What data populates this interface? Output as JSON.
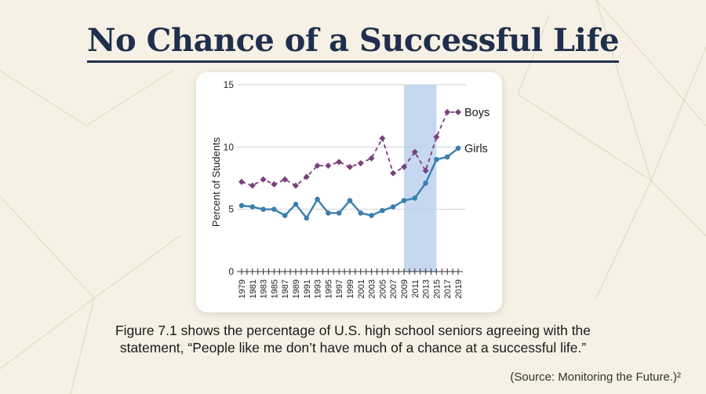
{
  "page": {
    "title": "No Chance of a Successful Life",
    "caption_line1": "Figure 7.1 shows the percentage of U.S. high school seniors agreeing with the",
    "caption_line2": "statement, “People like me don’t have much of a chance at a successful life.”",
    "source": "(Source: Monitoring the Future.)²"
  },
  "chart_data": {
    "type": "line",
    "ylabel": "Percent of Students",
    "ylim": [
      0,
      15
    ],
    "yticks": [
      0,
      5,
      10,
      15
    ],
    "x": [
      1979,
      1980,
      1981,
      1982,
      1983,
      1984,
      1985,
      1986,
      1987,
      1988,
      1989,
      1990,
      1991,
      1992,
      1993,
      1994,
      1995,
      1996,
      1997,
      1998,
      1999,
      2000,
      2001,
      2002,
      2003,
      2004,
      2005,
      2006,
      2007,
      2008,
      2009,
      2010,
      2011,
      2012,
      2013,
      2014,
      2015,
      2016,
      2017,
      2018,
      2019
    ],
    "xticks": [
      "1979",
      "1981",
      "1983",
      "1985",
      "1987",
      "1989",
      "1991",
      "1993",
      "1995",
      "1997",
      "1999",
      "2001",
      "2003",
      "2005",
      "2007",
      "2009",
      "2011",
      "2013",
      "2015",
      "2017",
      "2019"
    ],
    "highlight": {
      "from": 2009,
      "to": 2015
    },
    "grid": true,
    "series": [
      {
        "name": "Boys",
        "style": "dashed",
        "marker": "diamond",
        "color": "#7b3f7e",
        "points": [
          [
            1979,
            7.2
          ],
          [
            1981,
            6.9
          ],
          [
            1983,
            7.4
          ],
          [
            1985,
            7.0
          ],
          [
            1987,
            7.4
          ],
          [
            1989,
            6.9
          ],
          [
            1991,
            7.6
          ],
          [
            1993,
            8.5
          ],
          [
            1995,
            8.5
          ],
          [
            1997,
            8.8
          ],
          [
            1999,
            8.4
          ],
          [
            2001,
            8.7
          ],
          [
            2003,
            9.1
          ],
          [
            2005,
            10.7
          ],
          [
            2007,
            7.9
          ],
          [
            2009,
            8.4
          ],
          [
            2011,
            9.6
          ],
          [
            2013,
            8.1
          ],
          [
            2015,
            10.8
          ],
          [
            2017,
            12.8
          ],
          [
            2019,
            12.8
          ]
        ]
      },
      {
        "name": "Girls",
        "style": "solid",
        "marker": "circle",
        "color": "#3a7fb0",
        "points": [
          [
            1979,
            5.3
          ],
          [
            1981,
            5.2
          ],
          [
            1983,
            5.0
          ],
          [
            1985,
            5.0
          ],
          [
            1987,
            4.5
          ],
          [
            1989,
            5.4
          ],
          [
            1991,
            4.3
          ],
          [
            1993,
            5.8
          ],
          [
            1995,
            4.7
          ],
          [
            1997,
            4.7
          ],
          [
            1999,
            5.7
          ],
          [
            2001,
            4.7
          ],
          [
            2003,
            4.5
          ],
          [
            2005,
            4.9
          ],
          [
            2007,
            5.2
          ],
          [
            2009,
            5.7
          ],
          [
            2011,
            5.9
          ],
          [
            2013,
            7.1
          ],
          [
            2015,
            9.0
          ],
          [
            2017,
            9.2
          ],
          [
            2019,
            9.9
          ]
        ]
      }
    ]
  }
}
